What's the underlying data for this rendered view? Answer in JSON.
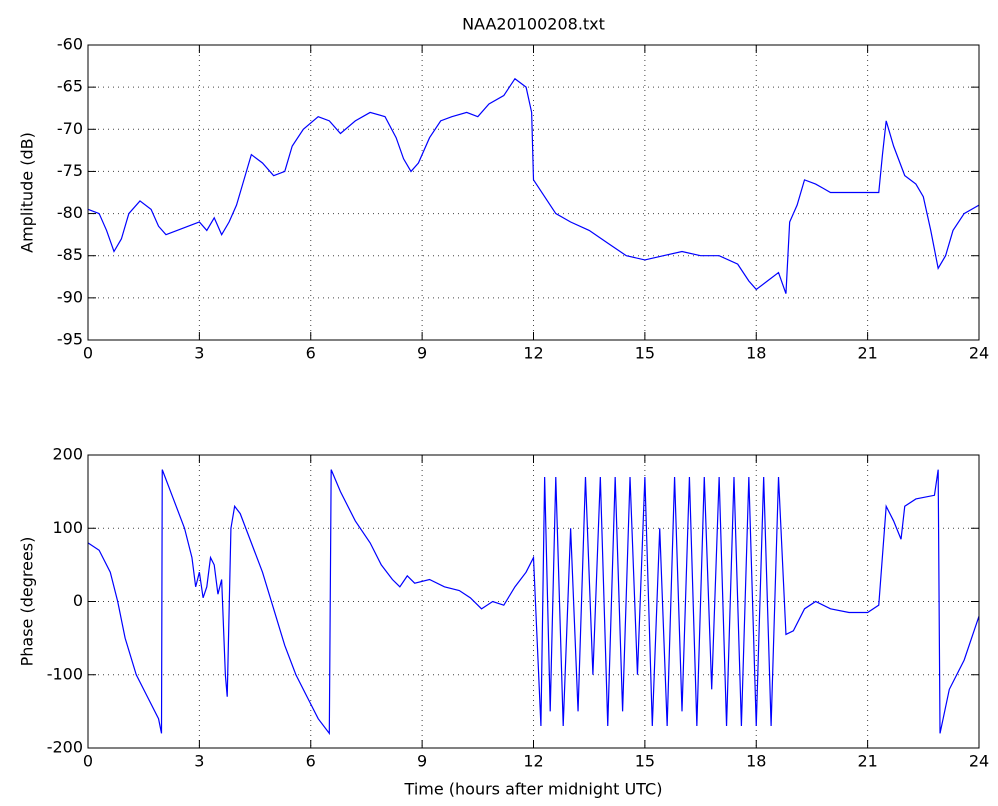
{
  "chart_data": [
    {
      "type": "line",
      "title": "NAA20100208.txt",
      "ylabel": "Amplitude (dB)",
      "color": "#0000ff",
      "grid": true,
      "xlim": [
        0,
        24
      ],
      "xticks": [
        0,
        3,
        6,
        9,
        12,
        15,
        18,
        21,
        24
      ],
      "ylim": [
        -95,
        -60
      ],
      "yticks": [
        -95,
        -90,
        -85,
        -80,
        -75,
        -70,
        -65,
        -60
      ],
      "x": [
        0,
        0.3,
        0.5,
        0.7,
        0.9,
        1.1,
        1.4,
        1.7,
        1.9,
        2.1,
        2.4,
        2.7,
        3.0,
        3.2,
        3.4,
        3.6,
        3.8,
        4.0,
        4.2,
        4.4,
        4.7,
        5.0,
        5.3,
        5.5,
        5.8,
        6.2,
        6.5,
        6.8,
        7.2,
        7.6,
        8.0,
        8.3,
        8.5,
        8.7,
        8.9,
        9.2,
        9.5,
        9.8,
        10.2,
        10.5,
        10.8,
        11.2,
        11.5,
        11.8,
        11.95,
        12.0,
        12.3,
        12.6,
        13,
        13.5,
        14,
        14.5,
        15,
        15.5,
        16,
        16.5,
        17,
        17.5,
        17.8,
        18,
        18.3,
        18.6,
        18.8,
        18.9,
        19.1,
        19.3,
        19.6,
        19.8,
        20,
        20.5,
        21,
        21.3,
        21.4,
        21.5,
        21.7,
        22,
        22.3,
        22.5,
        22.7,
        22.9,
        23.1,
        23.3,
        23.6,
        24
      ],
      "values": [
        -79.5,
        -80,
        -82,
        -84.5,
        -83,
        -80,
        -78.5,
        -79.5,
        -81.5,
        -82.5,
        -82,
        -81.5,
        -81,
        -82,
        -80.5,
        -82.5,
        -81,
        -79,
        -76,
        -73,
        -74,
        -75.5,
        -75,
        -72,
        -70,
        -68.5,
        -69,
        -70.5,
        -69,
        -68,
        -68.5,
        -71,
        -73.5,
        -75,
        -74,
        -71,
        -69,
        -68.5,
        -68,
        -68.5,
        -67,
        -66,
        -64,
        -65,
        -68,
        -76,
        -78,
        -80,
        -81,
        -82,
        -83.5,
        -85,
        -85.5,
        -85,
        -84.5,
        -85,
        -85,
        -86,
        -88,
        -89,
        -88,
        -87,
        -89.5,
        -81,
        -79,
        -76,
        -76.5,
        -77,
        -77.5,
        -77.5,
        -77.5,
        -77.5,
        -73,
        -69,
        -72,
        -75.5,
        -76.5,
        -78,
        -82,
        -86.5,
        -85,
        -82,
        -80,
        -79
      ]
    },
    {
      "type": "line",
      "ylabel": "Phase (degrees)",
      "xlabel": "Time (hours after midnight UTC)",
      "color": "#0000ff",
      "grid": true,
      "xlim": [
        0,
        24
      ],
      "xticks": [
        0,
        3,
        6,
        9,
        12,
        15,
        18,
        21,
        24
      ],
      "ylim": [
        -200,
        200
      ],
      "yticks": [
        -200,
        -100,
        0,
        100,
        200
      ],
      "x": [
        0,
        0.3,
        0.6,
        0.8,
        1,
        1.3,
        1.6,
        1.9,
        1.98,
        2.0,
        2.3,
        2.6,
        2.8,
        2.9,
        3.0,
        3.1,
        3.2,
        3.3,
        3.4,
        3.5,
        3.6,
        3.7,
        3.75,
        3.85,
        3.95,
        4.1,
        4.4,
        4.7,
        5,
        5.3,
        5.6,
        5.9,
        6.2,
        6.5,
        6.55,
        6.8,
        7.2,
        7.6,
        7.9,
        8.2,
        8.4,
        8.6,
        8.8,
        9.2,
        9.6,
        10,
        10.3,
        10.6,
        10.9,
        11.2,
        11.5,
        11.8,
        12.0,
        12.2,
        12.3,
        12.45,
        12.6,
        12.8,
        13,
        13.2,
        13.4,
        13.6,
        13.8,
        14,
        14.2,
        14.4,
        14.6,
        14.8,
        15,
        15.2,
        15.4,
        15.6,
        15.8,
        16,
        16.2,
        16.4,
        16.6,
        16.8,
        17,
        17.2,
        17.4,
        17.6,
        17.8,
        18,
        18.2,
        18.4,
        18.6,
        18.8,
        19,
        19.3,
        19.6,
        20,
        20.5,
        21,
        21.3,
        21.5,
        21.7,
        21.9,
        22,
        22.3,
        22.8,
        22.9,
        22.95,
        23.2,
        23.6,
        24
      ],
      "values": [
        80,
        70,
        40,
        0,
        -50,
        -100,
        -130,
        -160,
        -180,
        180,
        140,
        100,
        60,
        20,
        40,
        5,
        20,
        60,
        50,
        10,
        30,
        -100,
        -130,
        100,
        130,
        120,
        80,
        40,
        -10,
        -60,
        -100,
        -130,
        -160,
        -180,
        180,
        150,
        110,
        80,
        50,
        30,
        20,
        35,
        25,
        30,
        20,
        15,
        5,
        -10,
        0,
        -5,
        20,
        40,
        60,
        -170,
        170,
        -150,
        170,
        -170,
        100,
        -150,
        170,
        -100,
        170,
        -170,
        170,
        -150,
        170,
        -100,
        170,
        -170,
        100,
        -170,
        170,
        -150,
        170,
        -170,
        170,
        -120,
        170,
        -170,
        170,
        -170,
        170,
        -170,
        170,
        -170,
        170,
        -45,
        -40,
        -10,
        0,
        -10,
        -15,
        -15,
        -5,
        130,
        110,
        85,
        130,
        140,
        145,
        180,
        -180,
        -120,
        -80,
        -20
      ]
    }
  ]
}
